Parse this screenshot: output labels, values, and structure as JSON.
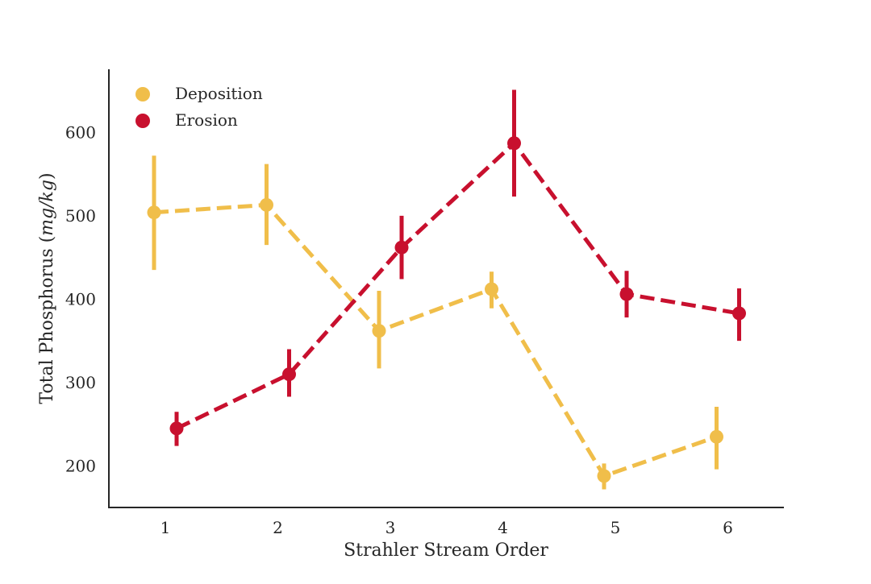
{
  "chart_data": {
    "type": "line",
    "xlabel": "Strahler Stream Order",
    "ylabel": "Total Phosphorus (",
    "ylabel_unit": "mg/kg",
    "ylabel_close": ")",
    "categories": [
      "1",
      "2",
      "3",
      "4",
      "5",
      "6"
    ],
    "ylim": [
      150,
      675
    ],
    "yticks": [
      200,
      300,
      400,
      500,
      600
    ],
    "grid": false,
    "legend_position": "top-left",
    "line_style": "dashed",
    "series": [
      {
        "name": "Deposition",
        "color": "#F0BE4A",
        "values": [
          504,
          513,
          362,
          412,
          188,
          235
        ],
        "err_low": [
          435,
          465,
          317,
          389,
          172,
          196
        ],
        "err_high": [
          572,
          562,
          410,
          433,
          203,
          271
        ]
      },
      {
        "name": "Erosion",
        "color": "#C8102E",
        "values": [
          245,
          310,
          462,
          587,
          406,
          383
        ],
        "err_low": [
          224,
          283,
          424,
          523,
          378,
          350
        ],
        "err_high": [
          265,
          340,
          500,
          651,
          434,
          413
        ]
      }
    ]
  }
}
